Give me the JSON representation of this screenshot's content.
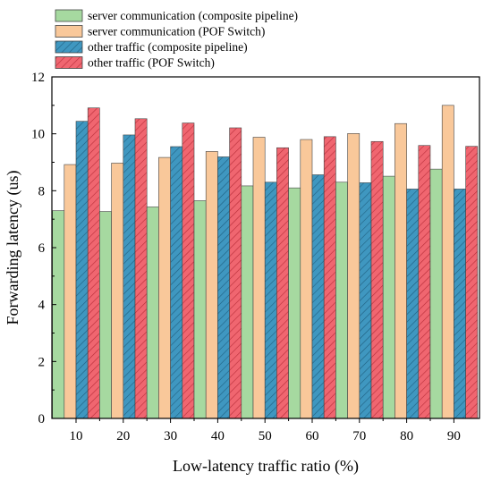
{
  "chart_data": {
    "type": "bar",
    "title": "",
    "xlabel": "Low-latency traffic ratio (%)",
    "ylabel": "Forwarding latency (us)",
    "categories": [
      "10",
      "20",
      "30",
      "40",
      "50",
      "60",
      "70",
      "80",
      "90"
    ],
    "ylim": [
      0,
      12
    ],
    "yticks": [
      "0",
      "2",
      "4",
      "6",
      "8",
      "10",
      "12"
    ],
    "grid": false,
    "legend_position": "top-left",
    "series": [
      {
        "name": "server communication (composite pipeline)",
        "color": "#a6d9a0",
        "hatched": false,
        "values": [
          7.3,
          7.27,
          7.43,
          7.65,
          8.17,
          8.1,
          8.3,
          8.51,
          8.76
        ]
      },
      {
        "name": "server communication (POF Switch)",
        "color": "#f9c89a",
        "hatched": false,
        "values": [
          8.92,
          8.97,
          9.17,
          9.38,
          9.88,
          9.8,
          10.01,
          10.36,
          11.0
        ]
      },
      {
        "name": "other traffic (composite pipeline)",
        "color": "#3f97c0",
        "hatched": true,
        "values": [
          10.44,
          9.96,
          9.55,
          9.19,
          8.3,
          8.56,
          8.28,
          8.06,
          8.06
        ]
      },
      {
        "name": "other traffic (POF Switch)",
        "color": "#f06670",
        "hatched": true,
        "values": [
          10.91,
          10.53,
          10.38,
          10.21,
          9.51,
          9.9,
          9.73,
          9.59,
          9.56
        ]
      }
    ]
  }
}
